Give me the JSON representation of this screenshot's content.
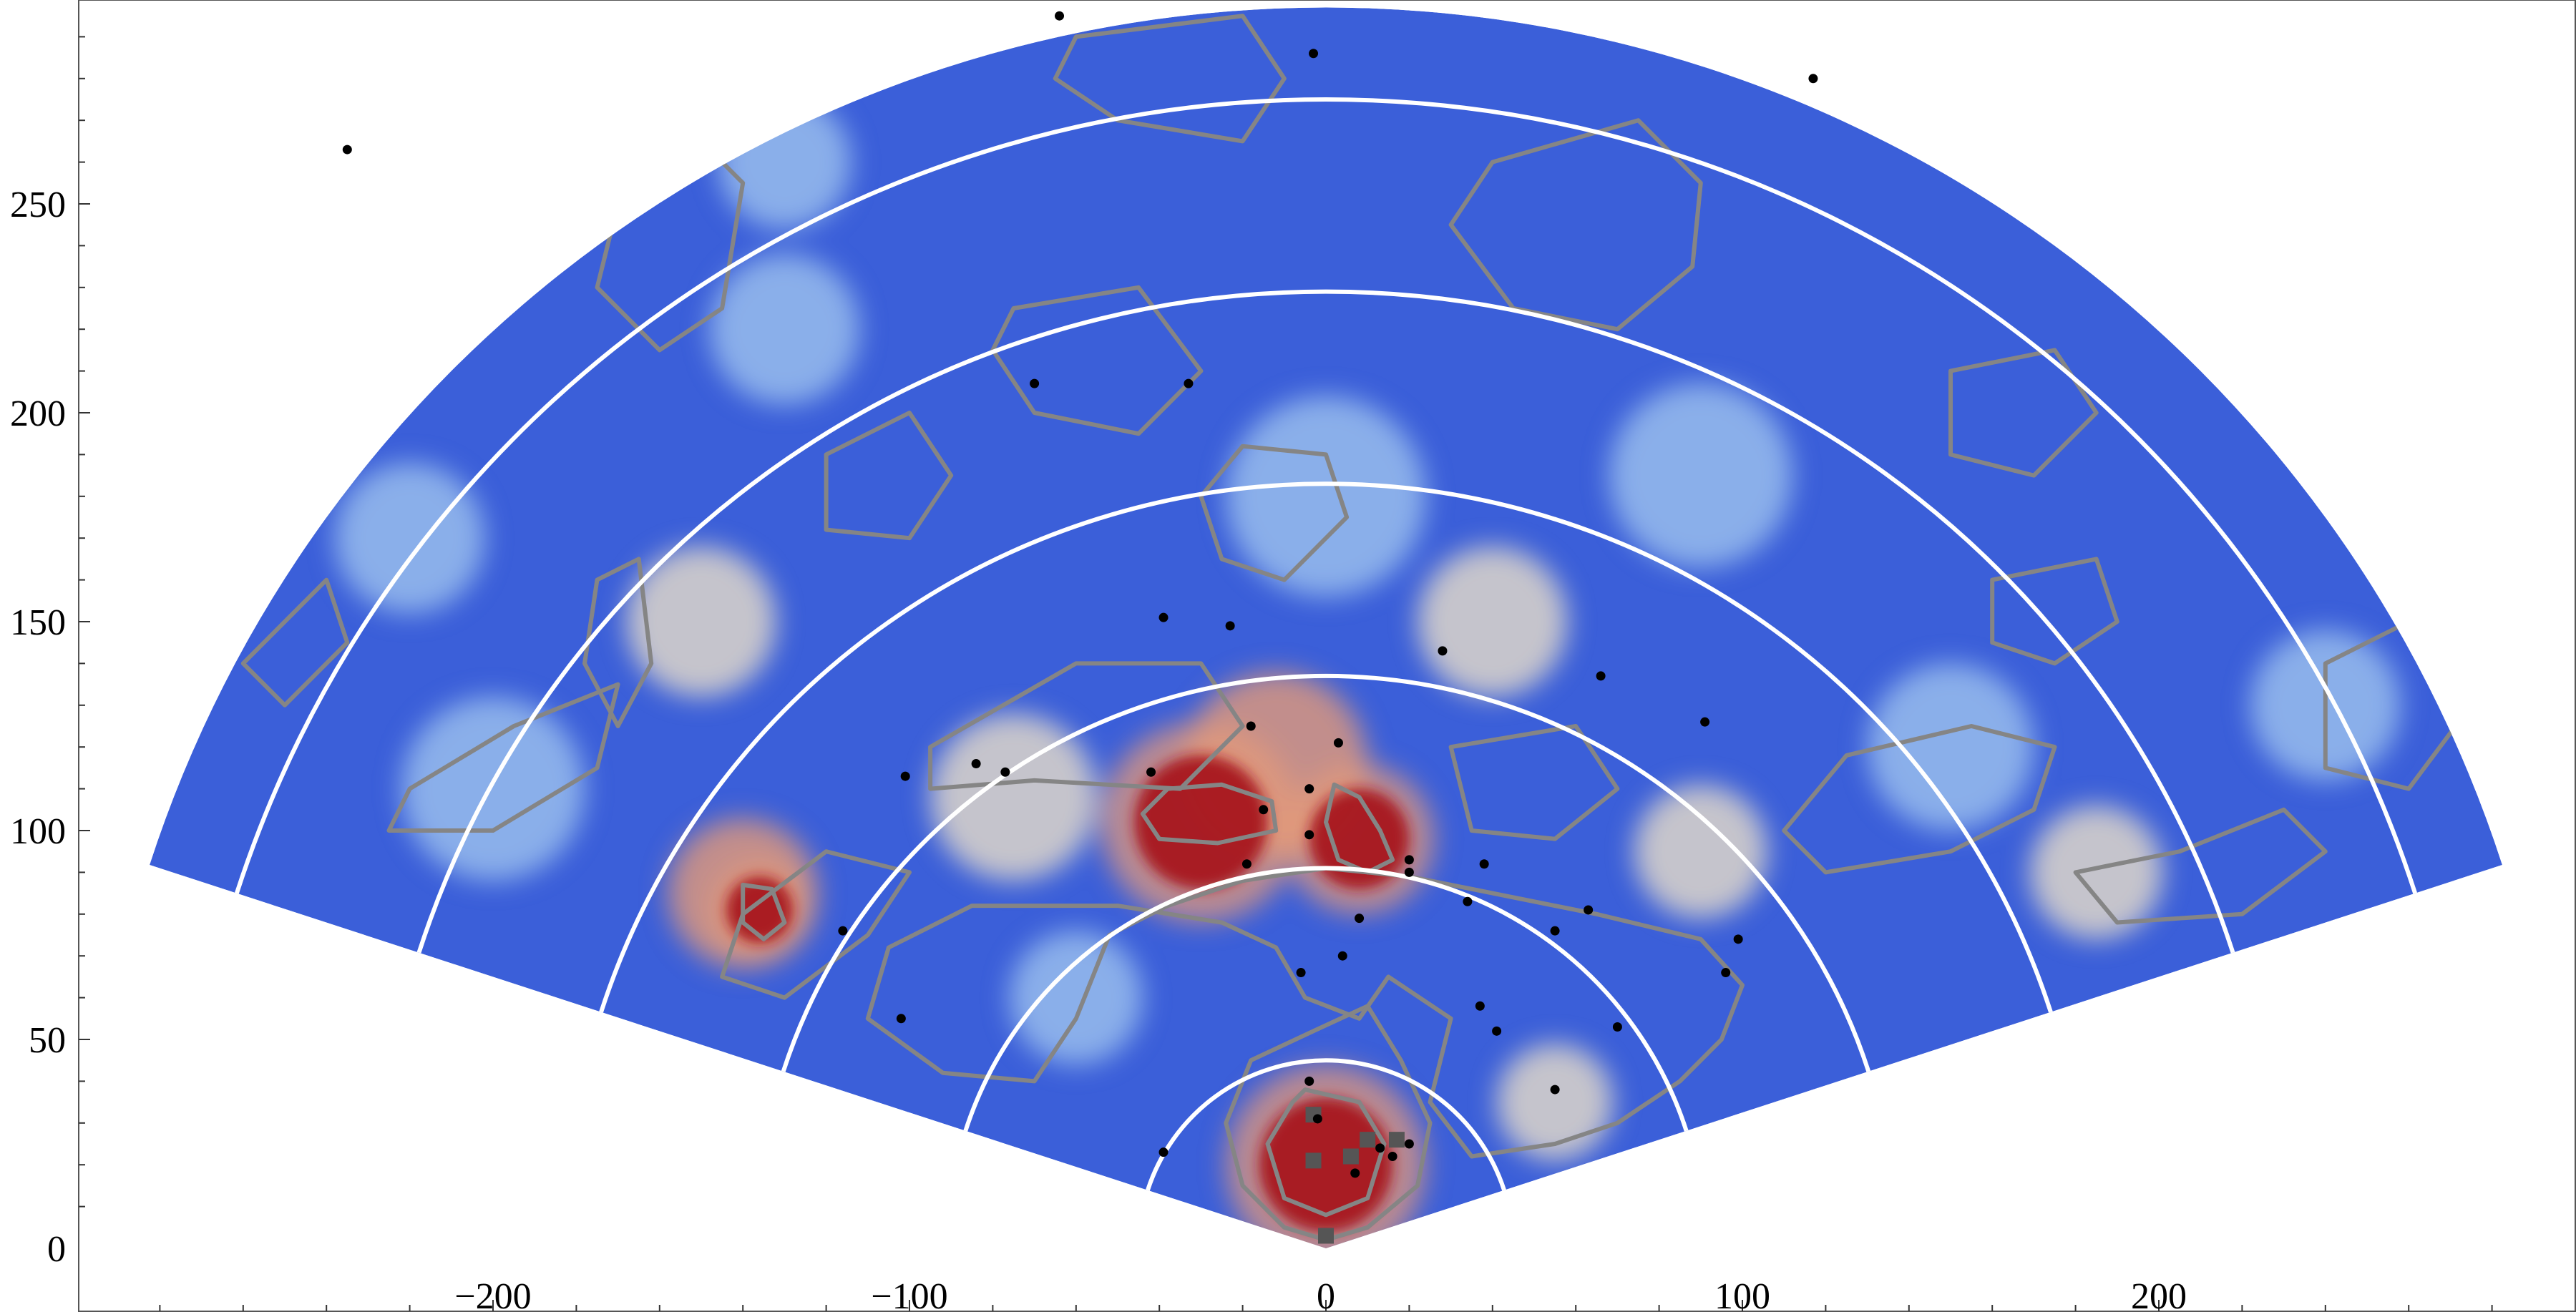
{
  "chart_data": {
    "type": "heatmap",
    "geometry": "polar-wedge",
    "title": "",
    "xlabel": "",
    "ylabel": "",
    "xlim": [
      -300,
      300
    ],
    "ylim": [
      0,
      300
    ],
    "wedge_angles_deg": [
      18,
      162
    ],
    "wedge_outer_radius": 297,
    "ring_radii": [
      45,
      91,
      137,
      183,
      229,
      275
    ],
    "x_ticks": [
      -200,
      -100,
      0,
      100,
      200
    ],
    "x_tick_labels": [
      "−200",
      "−100",
      "0",
      "100",
      "200"
    ],
    "y_ticks": [
      0,
      50,
      100,
      150,
      200,
      250
    ],
    "y_tick_labels": [
      "0",
      "50",
      "100",
      "150",
      "200",
      "250"
    ],
    "colors": {
      "low": "#3b5fd9",
      "mid_low": "#9fc3ee",
      "mid": "#e9ddc8",
      "mid_high": "#e59a78",
      "high": "#a8131f",
      "contour": "#858585",
      "ring": "#ffffff",
      "point": "#000000",
      "square": "#555555"
    },
    "hotspots": [
      {
        "x": 0,
        "y": 20,
        "r": 16,
        "level": "high"
      },
      {
        "x": -30,
        "y": 102,
        "r": 16,
        "level": "high"
      },
      {
        "x": 8,
        "y": 98,
        "r": 12,
        "level": "high"
      },
      {
        "x": -136,
        "y": 81,
        "r": 8,
        "level": "high"
      },
      {
        "x": -12,
        "y": 116,
        "r": 22,
        "level": "mid_high"
      },
      {
        "x": -140,
        "y": 85,
        "r": 18,
        "level": "mid_high"
      },
      {
        "x": -75,
        "y": 108,
        "r": 20,
        "level": "mid"
      },
      {
        "x": -150,
        "y": 150,
        "r": 18,
        "level": "mid"
      },
      {
        "x": 40,
        "y": 150,
        "r": 18,
        "level": "mid"
      },
      {
        "x": 90,
        "y": 95,
        "r": 16,
        "level": "mid"
      },
      {
        "x": 185,
        "y": 90,
        "r": 16,
        "level": "mid"
      },
      {
        "x": 55,
        "y": 35,
        "r": 14,
        "level": "mid"
      },
      {
        "x": -130,
        "y": 220,
        "r": 18,
        "level": "mid_low"
      },
      {
        "x": -130,
        "y": 260,
        "r": 16,
        "level": "mid_low"
      },
      {
        "x": 90,
        "y": 185,
        "r": 22,
        "level": "mid_low"
      },
      {
        "x": -200,
        "y": 110,
        "r": 22,
        "level": "mid_low"
      },
      {
        "x": 150,
        "y": 120,
        "r": 20,
        "level": "mid_low"
      },
      {
        "x": -60,
        "y": 60,
        "r": 16,
        "level": "mid_low"
      },
      {
        "x": 0,
        "y": 180,
        "r": 24,
        "level": "mid_low"
      },
      {
        "x": -220,
        "y": 170,
        "r": 18,
        "level": "mid_low"
      },
      {
        "x": 240,
        "y": 130,
        "r": 18,
        "level": "mid_low"
      }
    ],
    "points": [
      {
        "x": -64,
        "y": 295
      },
      {
        "x": -3,
        "y": 286
      },
      {
        "x": 117,
        "y": 280
      },
      {
        "x": -235,
        "y": 263
      },
      {
        "x": -70,
        "y": 207
      },
      {
        "x": -33,
        "y": 207
      },
      {
        "x": -39,
        "y": 151
      },
      {
        "x": -23,
        "y": 149
      },
      {
        "x": 28,
        "y": 143
      },
      {
        "x": 66,
        "y": 137
      },
      {
        "x": 91,
        "y": 126
      },
      {
        "x": -18,
        "y": 125
      },
      {
        "x": 3,
        "y": 121
      },
      {
        "x": -101,
        "y": 113
      },
      {
        "x": -84,
        "y": 116
      },
      {
        "x": -77,
        "y": 114
      },
      {
        "x": -42,
        "y": 114
      },
      {
        "x": -4,
        "y": 110
      },
      {
        "x": -15,
        "y": 105
      },
      {
        "x": -4,
        "y": 99
      },
      {
        "x": -19,
        "y": 92
      },
      {
        "x": 20,
        "y": 93
      },
      {
        "x": 38,
        "y": 92
      },
      {
        "x": 20,
        "y": 90
      },
      {
        "x": 34,
        "y": 83
      },
      {
        "x": 63,
        "y": 81
      },
      {
        "x": 8,
        "y": 79
      },
      {
        "x": -116,
        "y": 76
      },
      {
        "x": 55,
        "y": 76
      },
      {
        "x": 99,
        "y": 74
      },
      {
        "x": 4,
        "y": 70
      },
      {
        "x": -6,
        "y": 66
      },
      {
        "x": 96,
        "y": 66
      },
      {
        "x": 37,
        "y": 58
      },
      {
        "x": 41,
        "y": 52
      },
      {
        "x": 70,
        "y": 53
      },
      {
        "x": -102,
        "y": 55
      },
      {
        "x": -4,
        "y": 40
      },
      {
        "x": 55,
        "y": 38
      },
      {
        "x": -2,
        "y": 31
      },
      {
        "x": 13,
        "y": 24
      },
      {
        "x": 16,
        "y": 22
      },
      {
        "x": 20,
        "y": 25
      },
      {
        "x": -39,
        "y": 23
      },
      {
        "x": 7,
        "y": 18
      }
    ],
    "squares": [
      {
        "x": -3,
        "y": 32
      },
      {
        "x": 10,
        "y": 26
      },
      {
        "x": 17,
        "y": 26
      },
      {
        "x": 6,
        "y": 22
      },
      {
        "x": -3,
        "y": 21
      },
      {
        "x": 0,
        "y": 3
      }
    ],
    "contours": [
      [
        [
          -3,
          52
        ],
        [
          10,
          58
        ],
        [
          18,
          45
        ],
        [
          25,
          30
        ],
        [
          22,
          15
        ],
        [
          10,
          5
        ],
        [
          0,
          2
        ],
        [
          -10,
          5
        ],
        [
          -20,
          15
        ],
        [
          -24,
          30
        ],
        [
          -18,
          45
        ]
      ],
      [
        [
          -5,
          38
        ],
        [
          8,
          35
        ],
        [
          14,
          25
        ],
        [
          10,
          12
        ],
        [
          0,
          8
        ],
        [
          -10,
          12
        ],
        [
          -14,
          25
        ],
        [
          -8,
          35
        ]
      ],
      [
        [
          -38,
          110
        ],
        [
          -25,
          111
        ],
        [
          -13,
          107
        ],
        [
          -12,
          100
        ],
        [
          -26,
          97
        ],
        [
          -40,
          98
        ],
        [
          -44,
          104
        ]
      ],
      [
        [
          2,
          111
        ],
        [
          8,
          108
        ],
        [
          13,
          100
        ],
        [
          16,
          93
        ],
        [
          10,
          90
        ],
        [
          3,
          93
        ],
        [
          0,
          102
        ]
      ],
      [
        [
          -140,
          87
        ],
        [
          -133,
          86
        ],
        [
          -130,
          78
        ],
        [
          -135,
          74
        ],
        [
          -140,
          78
        ]
      ],
      [
        [
          -20,
          88
        ],
        [
          0,
          91
        ],
        [
          20,
          89
        ],
        [
          40,
          85
        ],
        [
          65,
          80
        ],
        [
          90,
          74
        ],
        [
          100,
          63
        ],
        [
          95,
          50
        ],
        [
          85,
          40
        ],
        [
          70,
          30
        ],
        [
          55,
          25
        ],
        [
          35,
          22
        ],
        [
          25,
          35
        ],
        [
          30,
          55
        ],
        [
          15,
          65
        ],
        [
          8,
          55
        ],
        [
          -5,
          60
        ],
        [
          -12,
          72
        ],
        [
          -25,
          78
        ],
        [
          -50,
          82
        ],
        [
          -85,
          82
        ],
        [
          -105,
          72
        ],
        [
          -110,
          55
        ],
        [
          -92,
          42
        ],
        [
          -70,
          40
        ],
        [
          -60,
          55
        ],
        [
          -52,
          75
        ],
        [
          -38,
          82
        ]
      ],
      [
        [
          40,
          260
        ],
        [
          75,
          270
        ],
        [
          90,
          255
        ],
        [
          88,
          235
        ],
        [
          70,
          220
        ],
        [
          45,
          225
        ],
        [
          30,
          245
        ]
      ],
      [
        [
          -75,
          225
        ],
        [
          -45,
          230
        ],
        [
          -30,
          210
        ],
        [
          -45,
          195
        ],
        [
          -70,
          200
        ],
        [
          -80,
          215
        ]
      ],
      [
        [
          -20,
          192
        ],
        [
          0,
          190
        ],
        [
          5,
          175
        ],
        [
          -10,
          160
        ],
        [
          -25,
          165
        ],
        [
          -30,
          180
        ]
      ],
      [
        [
          -95,
          120
        ],
        [
          -60,
          140
        ],
        [
          -30,
          140
        ],
        [
          -20,
          125
        ],
        [
          -35,
          110
        ],
        [
          -70,
          112
        ],
        [
          -95,
          110
        ]
      ],
      [
        [
          120,
          90
        ],
        [
          150,
          95
        ],
        [
          170,
          105
        ],
        [
          175,
          120
        ],
        [
          155,
          125
        ],
        [
          125,
          118
        ],
        [
          110,
          100
        ]
      ],
      [
        [
          180,
          90
        ],
        [
          205,
          95
        ],
        [
          230,
          105
        ],
        [
          240,
          95
        ],
        [
          220,
          80
        ],
        [
          190,
          78
        ]
      ],
      [
        [
          240,
          140
        ],
        [
          260,
          150
        ],
        [
          275,
          130
        ],
        [
          260,
          110
        ],
        [
          240,
          115
        ]
      ],
      [
        [
          -220,
          110
        ],
        [
          -195,
          125
        ],
        [
          -170,
          135
        ],
        [
          -175,
          115
        ],
        [
          -200,
          100
        ],
        [
          -225,
          100
        ]
      ],
      [
        [
          -260,
          140
        ],
        [
          -240,
          160
        ],
        [
          -235,
          145
        ],
        [
          -250,
          130
        ]
      ],
      [
        [
          -175,
          160
        ],
        [
          -165,
          165
        ],
        [
          -162,
          140
        ],
        [
          -170,
          125
        ],
        [
          -178,
          140
        ]
      ],
      [
        [
          -170,
          250
        ],
        [
          -150,
          265
        ],
        [
          -140,
          255
        ],
        [
          -145,
          225
        ],
        [
          -160,
          215
        ],
        [
          -175,
          230
        ]
      ],
      [
        [
          -120,
          190
        ],
        [
          -100,
          200
        ],
        [
          -90,
          185
        ],
        [
          -100,
          170
        ],
        [
          -120,
          172
        ]
      ],
      [
        [
          -60,
          290
        ],
        [
          -20,
          295
        ],
        [
          -10,
          280
        ],
        [
          -20,
          265
        ],
        [
          -50,
          270
        ],
        [
          -65,
          280
        ]
      ],
      [
        [
          150,
          210
        ],
        [
          175,
          215
        ],
        [
          185,
          200
        ],
        [
          170,
          185
        ],
        [
          150,
          190
        ]
      ],
      [
        [
          160,
          160
        ],
        [
          185,
          165
        ],
        [
          190,
          150
        ],
        [
          175,
          140
        ],
        [
          160,
          145
        ]
      ],
      [
        [
          -130,
          60
        ],
        [
          -110,
          75
        ],
        [
          -100,
          90
        ],
        [
          -120,
          95
        ],
        [
          -140,
          80
        ],
        [
          -145,
          65
        ]
      ],
      [
        [
          30,
          120
        ],
        [
          60,
          125
        ],
        [
          70,
          110
        ],
        [
          55,
          98
        ],
        [
          35,
          100
        ]
      ]
    ]
  }
}
